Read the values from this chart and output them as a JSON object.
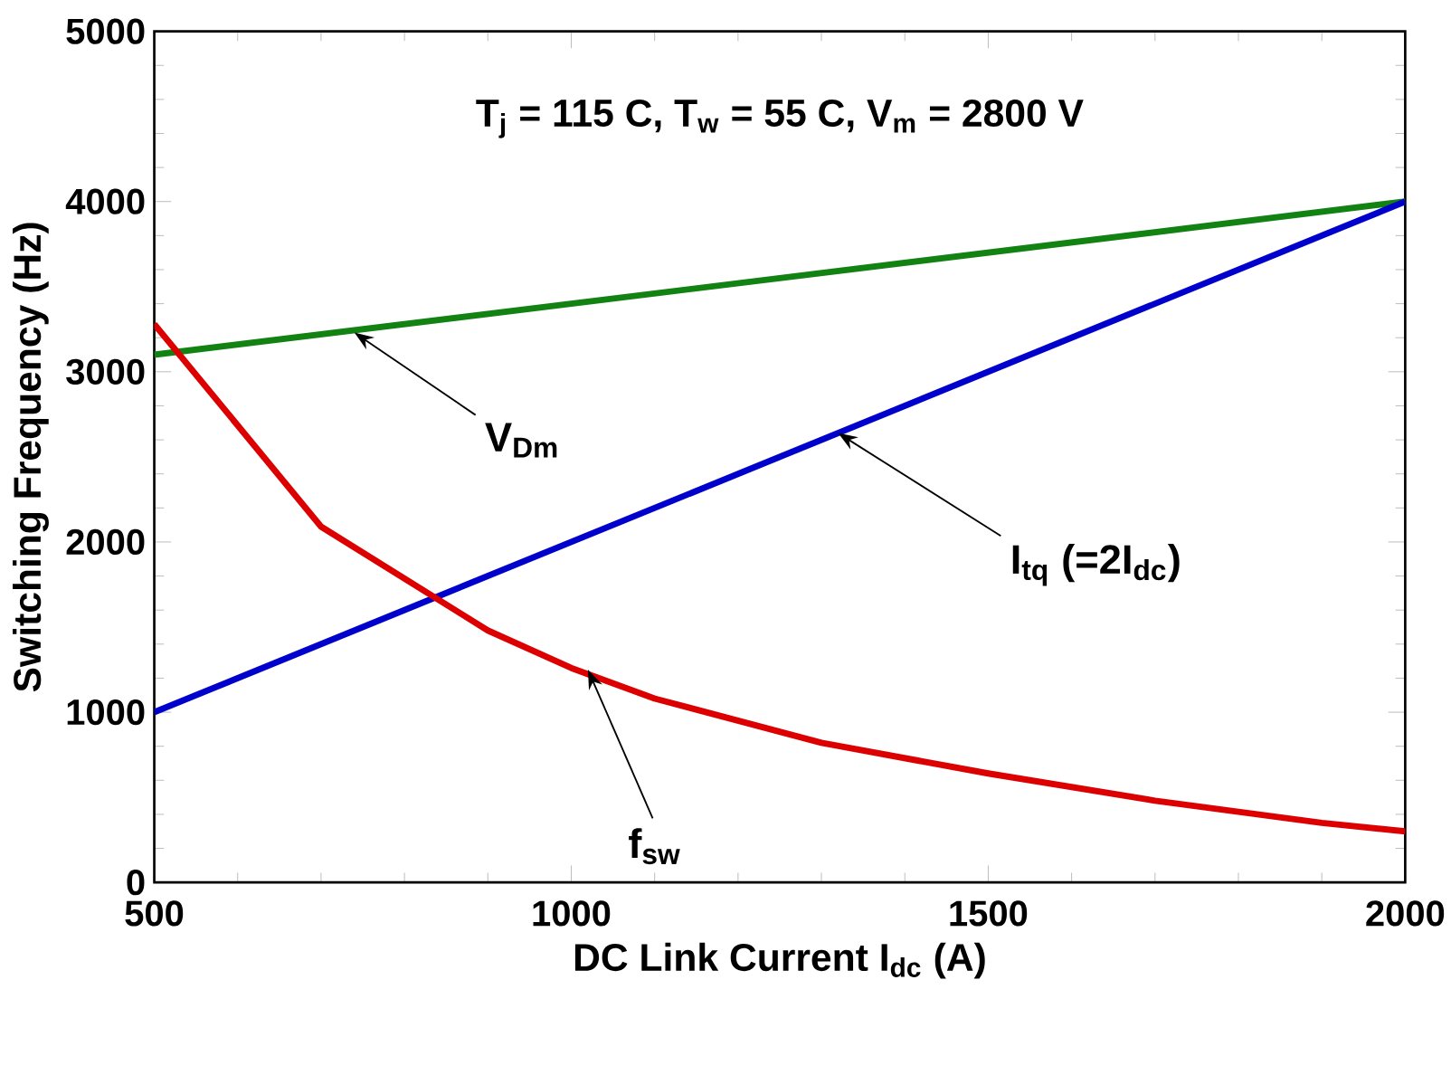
{
  "chart_data": {
    "type": "line",
    "title": "T$_{j}$ = 115 C, T$_{w}$ = 55 C, V$_{m}$ = 2800 V",
    "xlabel": "DC Link Current I$_{dc}$ (A)",
    "ylabel": "Switching Frequency (Hz)",
    "xlim": [
      500,
      2000
    ],
    "xticks": [
      500,
      1000,
      1500,
      2000
    ],
    "ylim": [
      0,
      5000
    ],
    "yticks": [
      0,
      1000,
      2000,
      3000,
      4000,
      5000
    ],
    "grid": false,
    "marker": "none",
    "line_style": "solid",
    "series": [
      {
        "color": "#128212",
        "x": [
          500,
          2000
        ],
        "values": [
          3100,
          4000
        ]
      },
      {
        "color": "#0000cc",
        "x": [
          500,
          2000
        ],
        "values": [
          1000,
          4000
        ]
      },
      {
        "color": "#dd0000",
        "x": [
          500,
          700,
          900,
          1000,
          1100,
          1300,
          1500,
          1700,
          1900,
          2000
        ],
        "values": [
          3280,
          2090,
          1480,
          1260,
          1080,
          820,
          640,
          480,
          350,
          300
        ]
      }
    ],
    "annotations": [
      {
        "text": "V$_{Dm}$",
        "x": 740,
        "y": 3230
      },
      {
        "text": "I$_{tq}$ (=2I$_{dc}$)",
        "x": 1320,
        "y": 2640
      },
      {
        "text": "f$_{sw}$",
        "x": 1020,
        "y": 1250
      }
    ]
  }
}
